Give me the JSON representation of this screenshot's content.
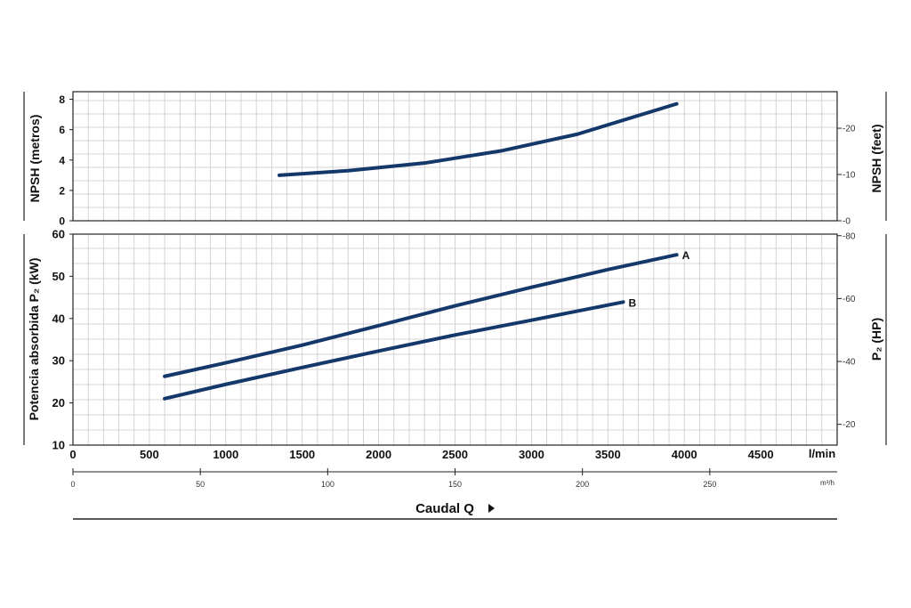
{
  "chart_data": [
    {
      "type": "line",
      "panel": "npsh",
      "ylabel": "NPSH  (metros)",
      "ylabel_right": "NPSH  (feet)",
      "ylim": [
        0,
        8.5
      ],
      "yticks": [
        0,
        2,
        4,
        6,
        8
      ],
      "ylim_right": [
        0,
        27.9
      ],
      "yticks_right": [
        0,
        10,
        20
      ],
      "xlim": [
        0,
        5000
      ],
      "grid": true,
      "series": [
        {
          "points": [
            [
              1350,
              3.0
            ],
            [
              1800,
              3.3
            ],
            [
              2300,
              3.8
            ],
            [
              2800,
              4.6
            ],
            [
              3300,
              5.7
            ],
            [
              3950,
              7.7
            ]
          ]
        }
      ]
    },
    {
      "type": "line",
      "panel": "power",
      "ylabel": "Potencia absorbida  P₂  (kW)",
      "ylabel_right": "P₂  (HP)",
      "ylim": [
        10,
        60
      ],
      "yticks": [
        10,
        20,
        30,
        40,
        50,
        60
      ],
      "ylim_right": [
        13.4,
        80.5
      ],
      "yticks_right": [
        20,
        40,
        60,
        80
      ],
      "xlabel": "Caudal  Q",
      "xlim": [
        0,
        5000
      ],
      "xticks": [
        0,
        500,
        1000,
        1500,
        2000,
        2500,
        3000,
        3500,
        4000,
        4500
      ],
      "xunit": "l/min",
      "x2ticks": [
        0,
        50,
        100,
        150,
        200,
        250
      ],
      "x2unit": "m³/h",
      "grid": true,
      "series": [
        {
          "name": "A",
          "points": [
            [
              600,
              26.3
            ],
            [
              1000,
              29.5
            ],
            [
              1500,
              33.7
            ],
            [
              2000,
              38.3
            ],
            [
              2500,
              43.0
            ],
            [
              3000,
              47.4
            ],
            [
              3500,
              51.6
            ],
            [
              3950,
              55.1
            ]
          ]
        },
        {
          "name": "B",
          "points": [
            [
              600,
              21.0
            ],
            [
              1000,
              24.4
            ],
            [
              1500,
              28.4
            ],
            [
              2000,
              32.3
            ],
            [
              2500,
              36.1
            ],
            [
              3000,
              39.6
            ],
            [
              3600,
              43.9
            ]
          ]
        }
      ]
    }
  ],
  "curve_color": "#15386b"
}
